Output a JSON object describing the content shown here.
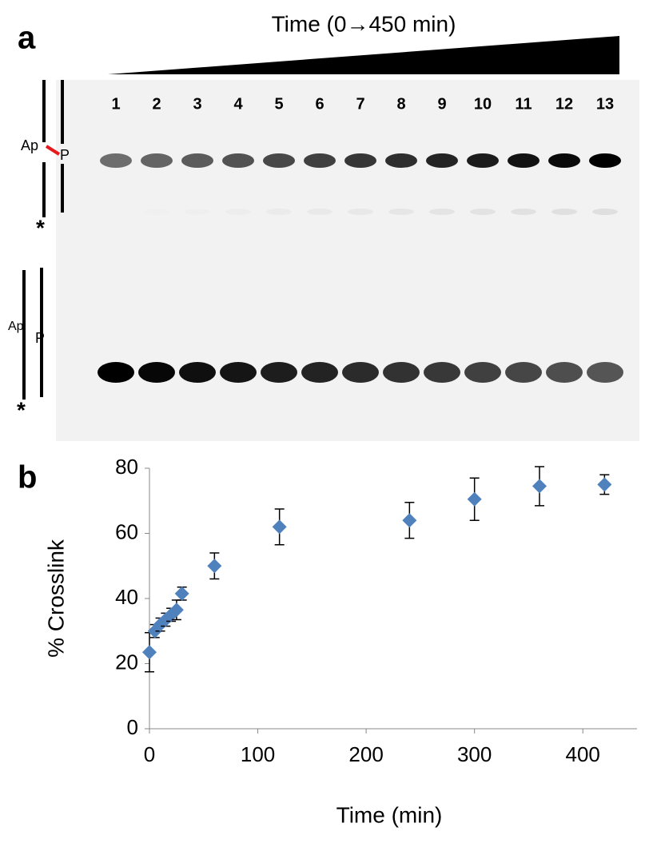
{
  "panel_a": {
    "label": "a",
    "time_label": "Time (0→450 min)",
    "lanes": [
      "1",
      "2",
      "3",
      "4",
      "5",
      "6",
      "7",
      "8",
      "9",
      "10",
      "11",
      "12",
      "13"
    ],
    "top_strand_labels": {
      "left": "Ap",
      "right": "P",
      "star": "*"
    },
    "bottom_strand_labels": {
      "left": "Ap",
      "right": "P",
      "star": "*"
    }
  },
  "panel_b_label": "b",
  "chart_data": {
    "type": "scatter",
    "x_label": "Time (min)",
    "y_label": "% Crosslink",
    "x": [
      0,
      5,
      10,
      15,
      20,
      25,
      30,
      60,
      120,
      240,
      300,
      360,
      420
    ],
    "values": [
      23.5,
      30,
      32,
      33.5,
      35,
      36.5,
      41.5,
      50,
      62,
      64,
      70.5,
      74.5,
      75
    ],
    "errors": [
      6,
      2,
      2,
      2,
      2,
      3,
      2,
      4,
      5.5,
      5.5,
      6.5,
      6,
      3
    ],
    "color": "#4f81bd",
    "xlim": [
      0,
      450
    ],
    "xticks": [
      0,
      100,
      200,
      300,
      400
    ],
    "ylim": [
      0,
      80
    ],
    "yticks": [
      0,
      20,
      40,
      60,
      80
    ]
  }
}
